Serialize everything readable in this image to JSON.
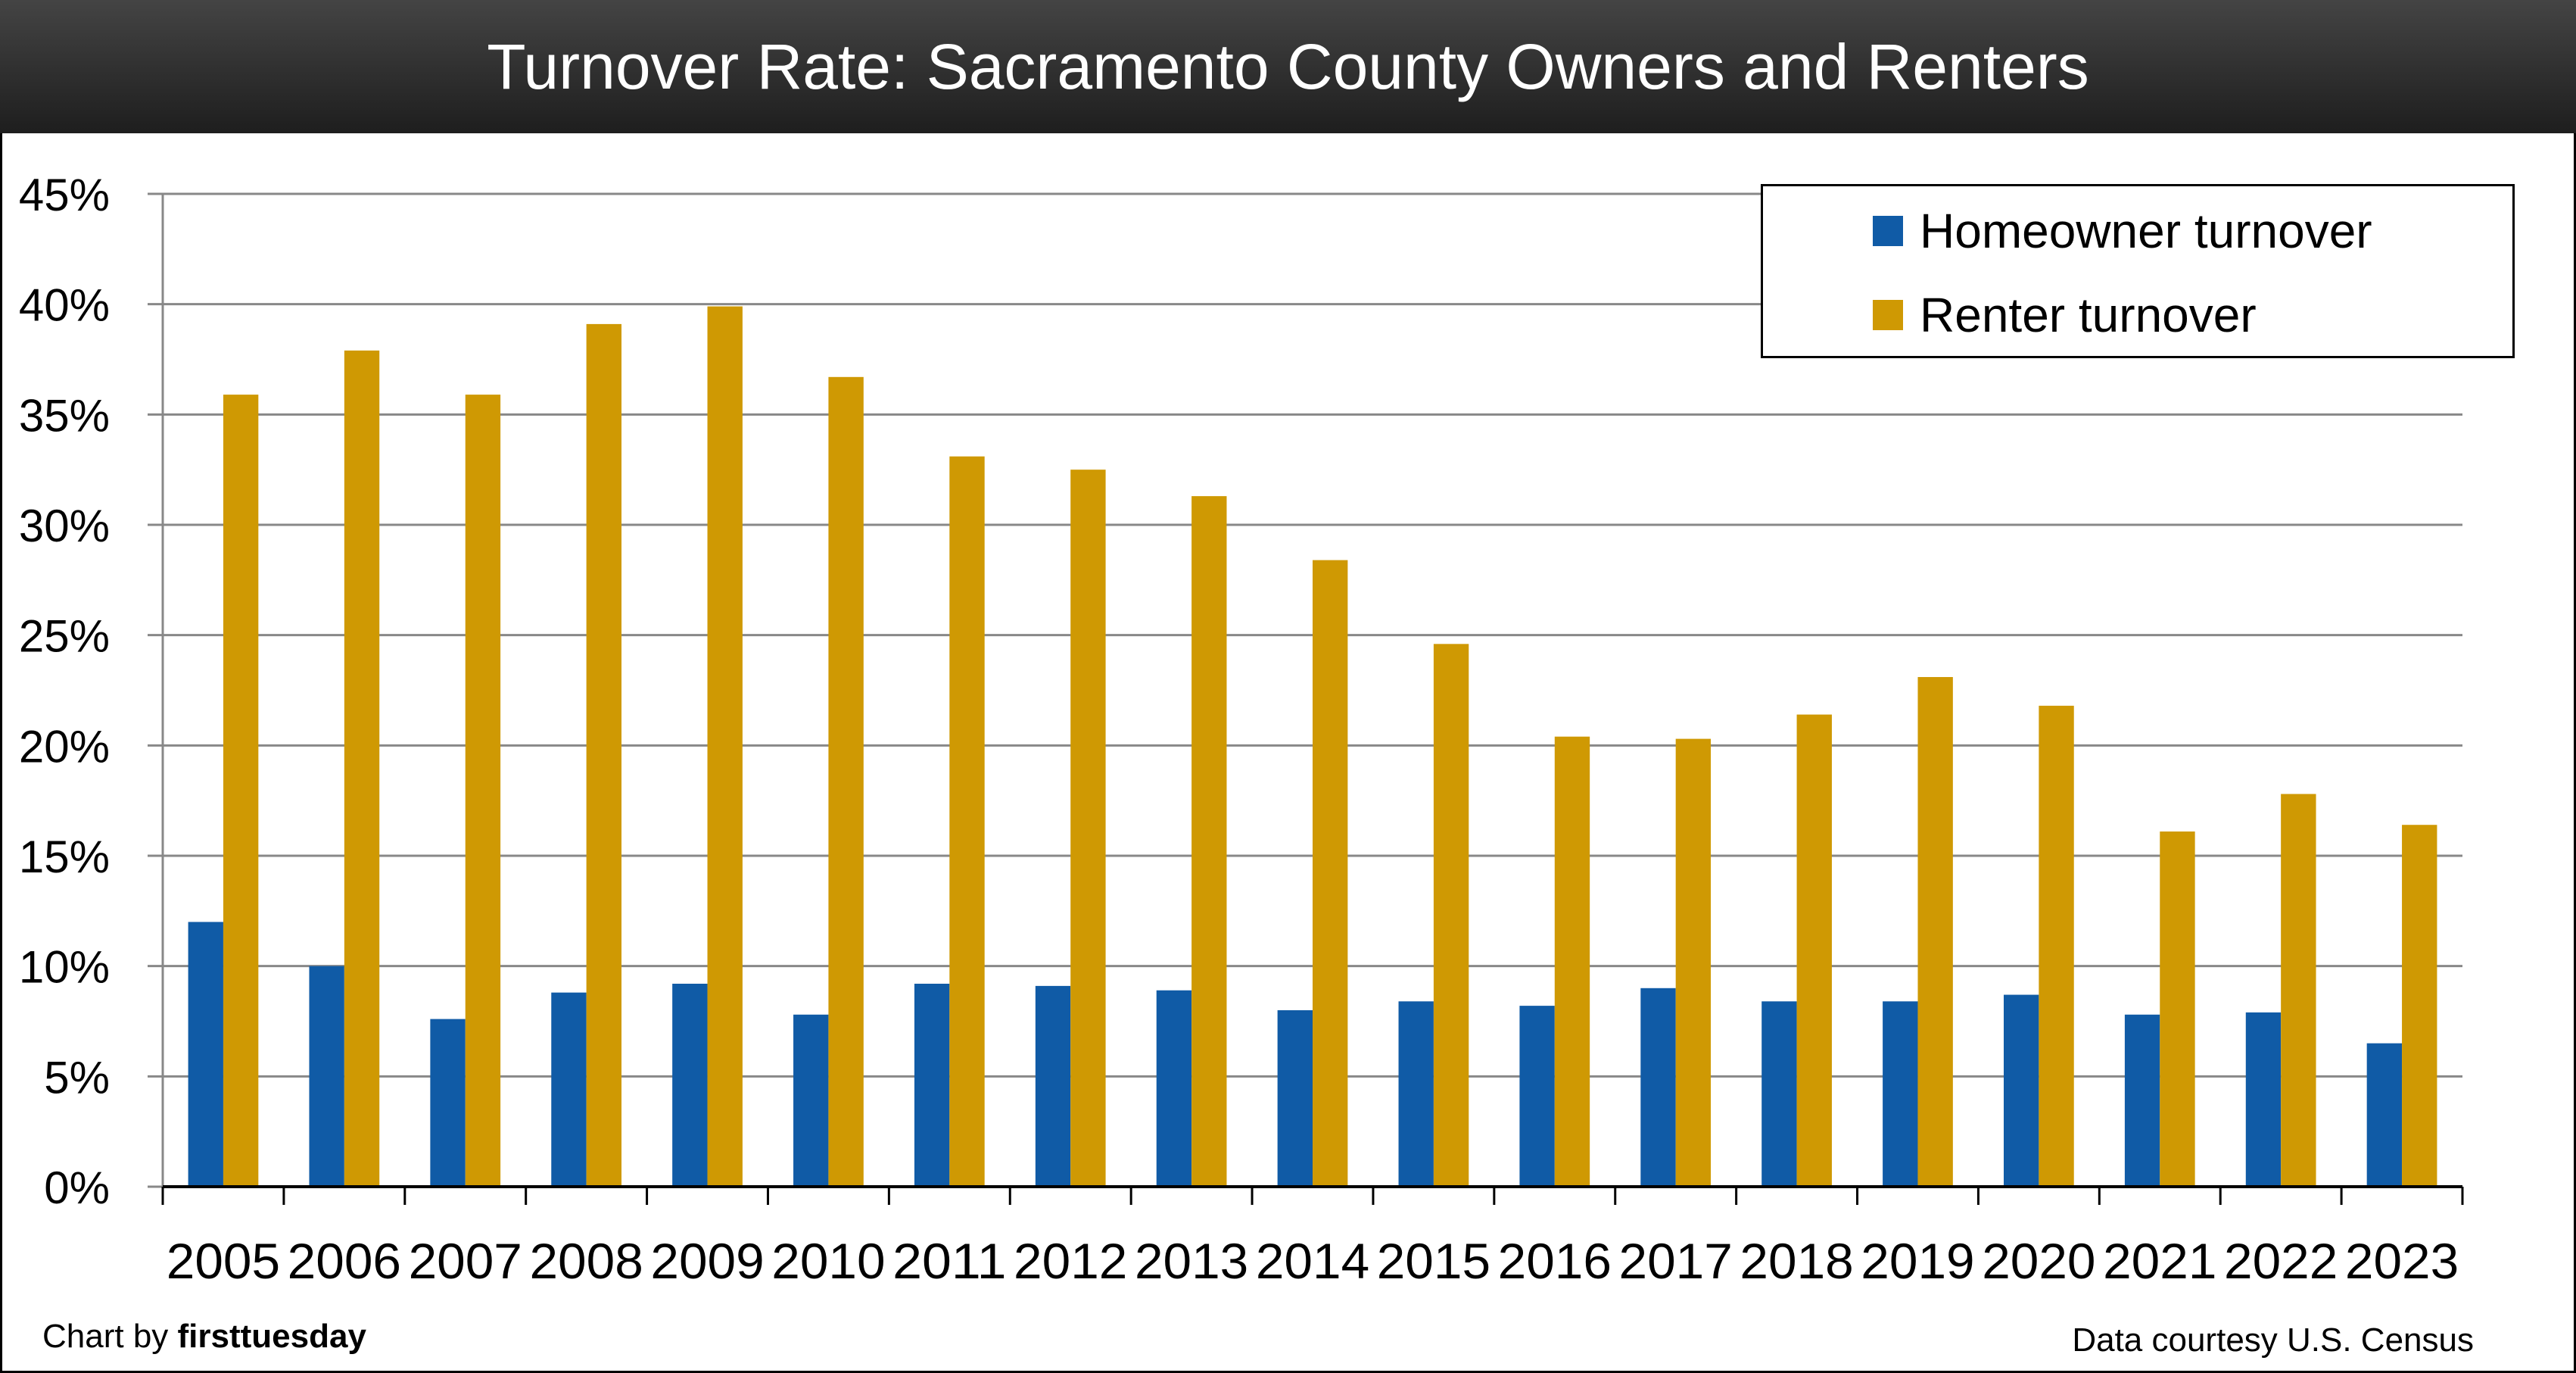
{
  "chart_data": {
    "type": "bar",
    "title": "Turnover Rate: Sacramento County Owners and Renters",
    "xlabel": "",
    "ylabel": "",
    "ylim": [
      0,
      45
    ],
    "ytick_step": 5,
    "ytick_format": "percent",
    "yticks": [
      "0%",
      "5%",
      "10%",
      "15%",
      "20%",
      "25%",
      "30%",
      "35%",
      "40%",
      "45%"
    ],
    "grid": true,
    "legend_position": "top-right",
    "categories": [
      "2005",
      "2006",
      "2007",
      "2008",
      "2009",
      "2010",
      "2011",
      "2012",
      "2013",
      "2014",
      "2015",
      "2016",
      "2017",
      "2018",
      "2019",
      "2020",
      "2021",
      "2022",
      "2023"
    ],
    "series": [
      {
        "name": "Homeowner turnover",
        "color": "#105BA6",
        "values": [
          12.0,
          10.0,
          7.6,
          8.8,
          9.2,
          7.8,
          9.2,
          9.1,
          8.9,
          8.0,
          8.4,
          8.2,
          9.0,
          8.4,
          8.4,
          8.7,
          7.8,
          7.9,
          6.5
        ]
      },
      {
        "name": "Renter turnover",
        "color": "#CF9903",
        "values": [
          35.9,
          37.9,
          35.9,
          39.1,
          39.9,
          36.7,
          33.1,
          32.5,
          31.3,
          28.4,
          24.6,
          20.4,
          20.3,
          21.4,
          23.1,
          21.8,
          16.1,
          17.8,
          16.4
        ]
      }
    ]
  },
  "footer": {
    "credit_prefix": "Chart by ",
    "credit_brand": "firsttuesday",
    "source": "Data courtesy U.S. Census"
  },
  "colors": {
    "title_bar": "#2b2b2b",
    "gridline": "#888888"
  }
}
